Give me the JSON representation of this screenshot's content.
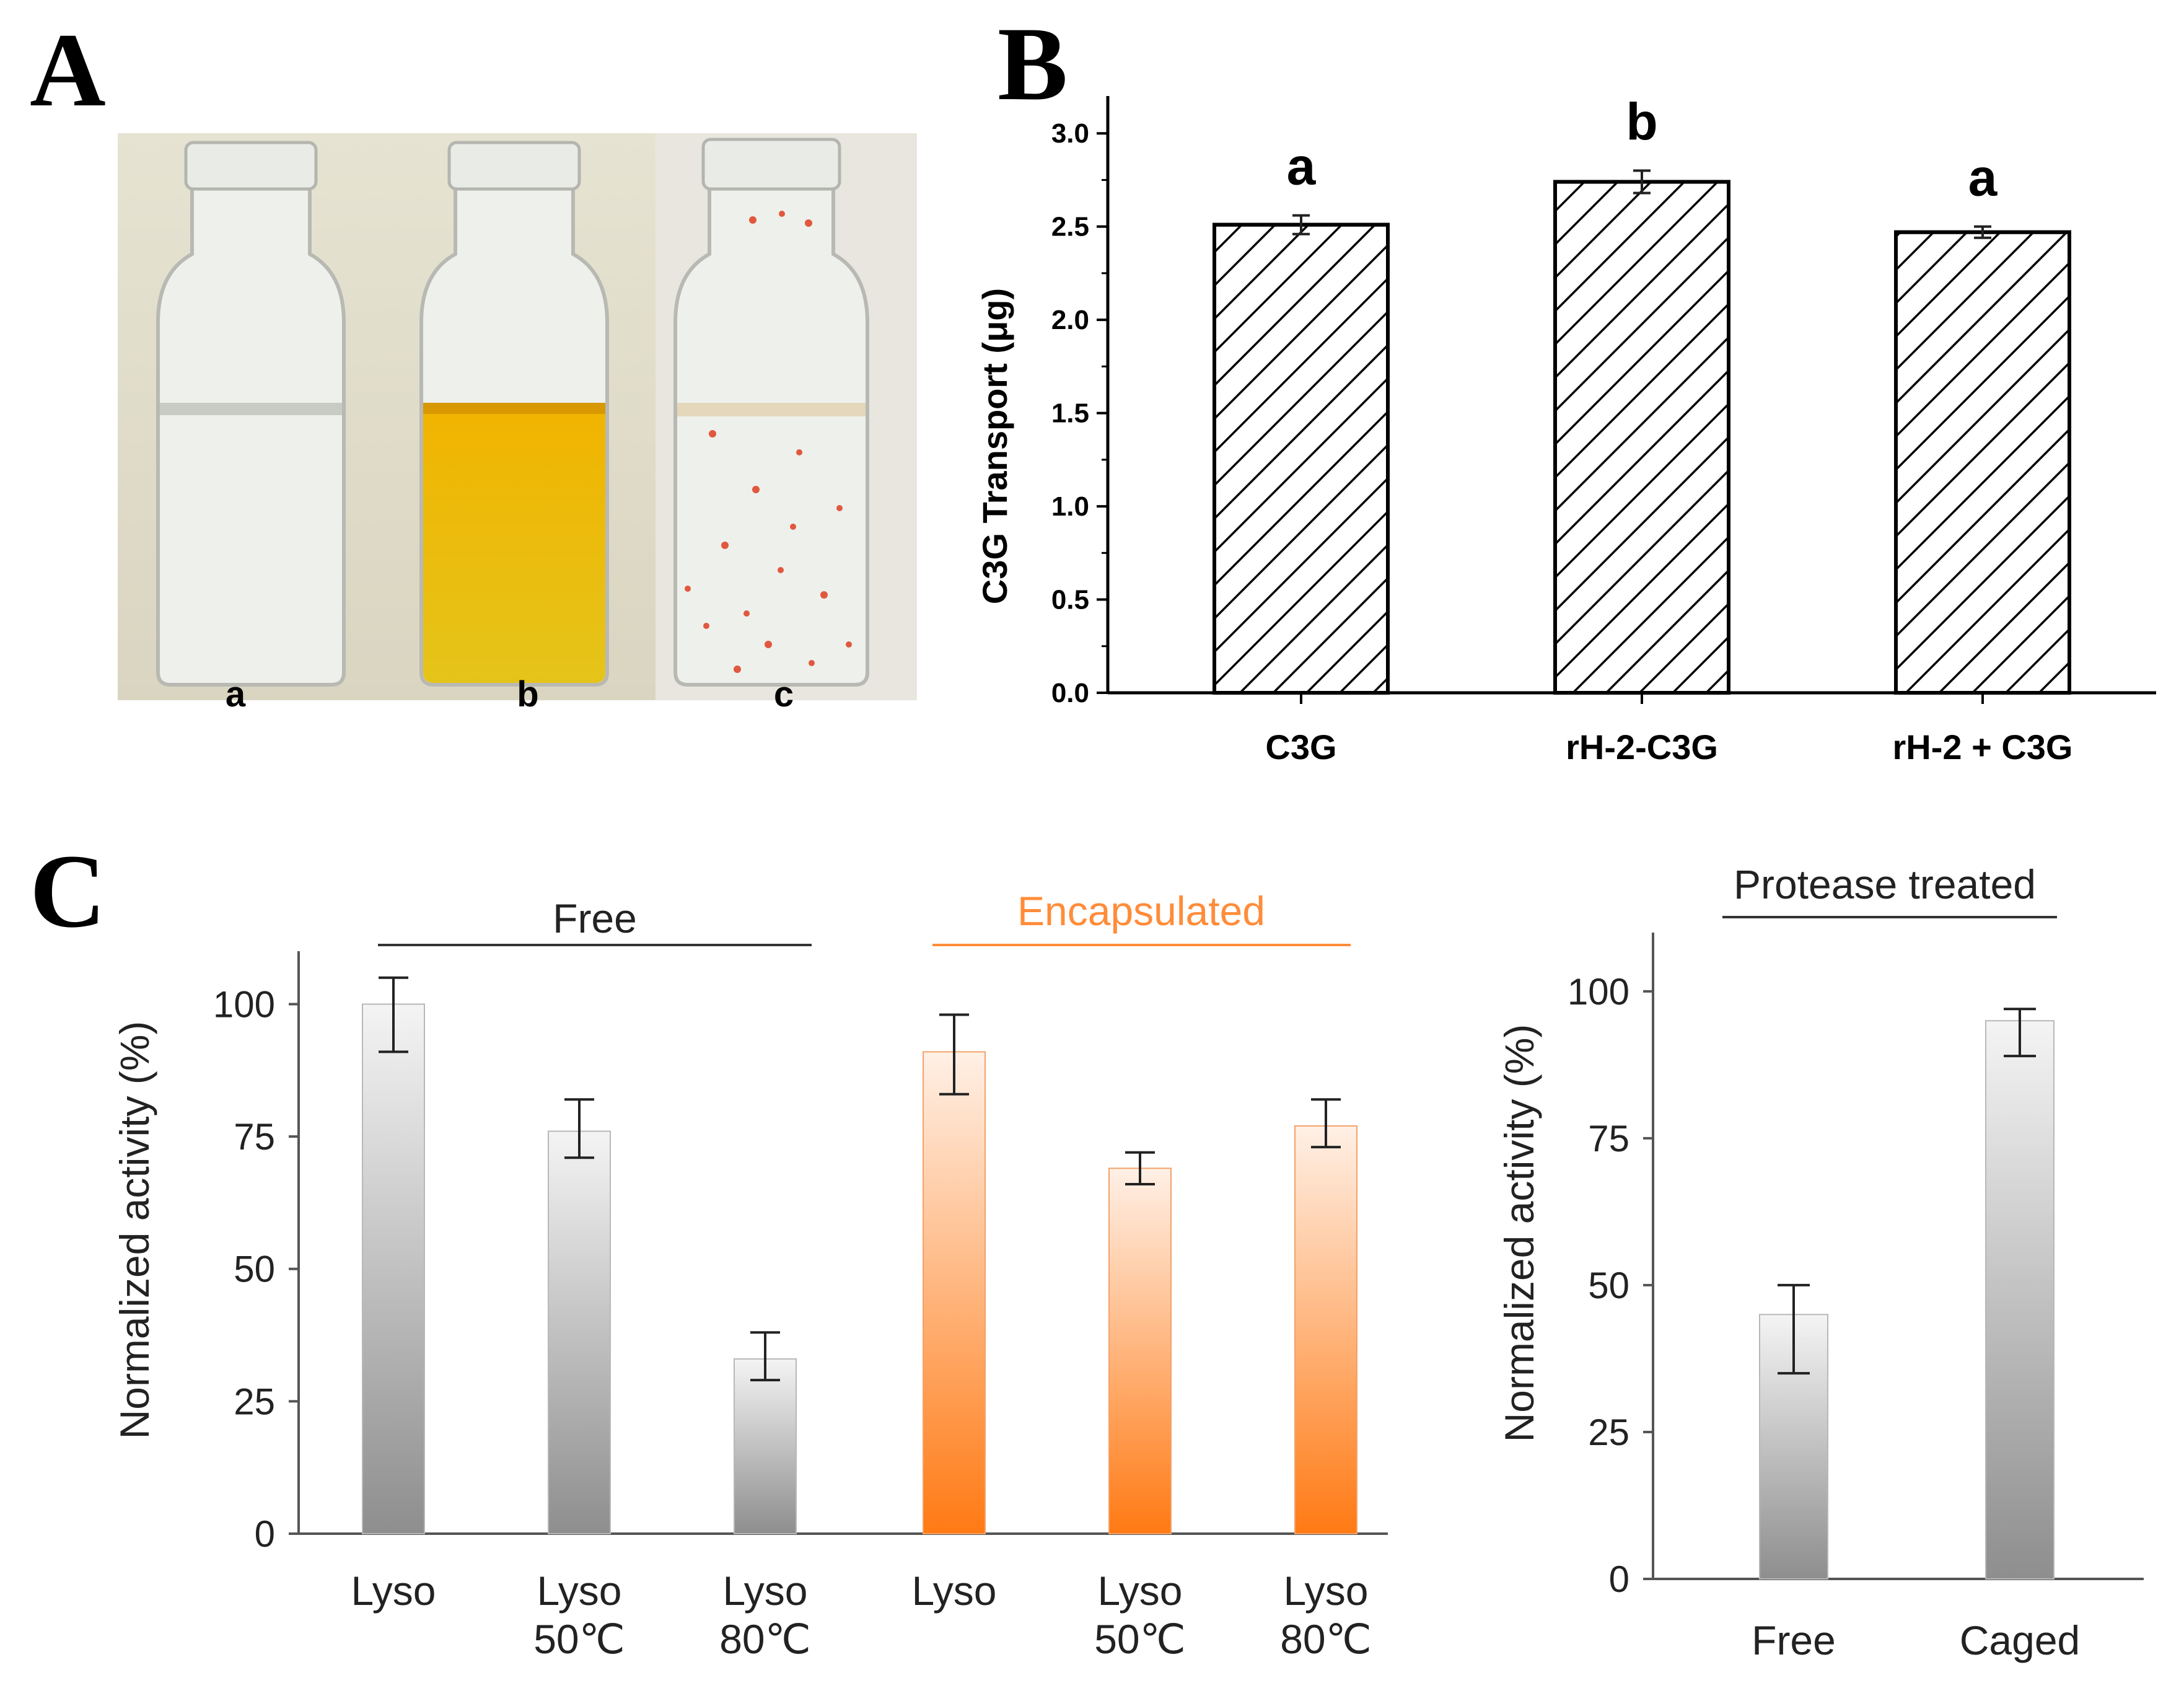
{
  "colors": {
    "encapsulated_label": "#ff8c3a",
    "orange_bar": "#ff7f1e",
    "gray_bar": "#9a9a9a"
  },
  "panel_letters": {
    "a": "A",
    "b": "B",
    "c": "C"
  },
  "photo": {
    "vial_labels": [
      "a",
      "b",
      "c"
    ]
  },
  "chart_data": [
    {
      "id": "B",
      "type": "bar",
      "title": "",
      "xlabel": "",
      "ylabel": "C3G Transport (μg)",
      "ylim": [
        0,
        3.2
      ],
      "yticks": [
        "0.0",
        "0.5",
        "1.0",
        "1.5",
        "2.0",
        "2.5",
        "3.0"
      ],
      "categories": [
        "C3G",
        "rH-2-C3G",
        "rH-2 + C3G"
      ],
      "values": [
        2.51,
        2.74,
        2.47
      ],
      "errors": [
        0.05,
        0.06,
        0.03
      ],
      "significance": [
        "a",
        "b",
        "a"
      ],
      "pattern": "diagonal-hatch"
    },
    {
      "id": "C-left",
      "type": "bar",
      "ylabel": "Normalized activity (%)",
      "ylim": [
        0,
        110
      ],
      "yticks": [
        "0",
        "25",
        "50",
        "75",
        "100"
      ],
      "categories": [
        [
          "Lyso"
        ],
        [
          "Lyso",
          "50℃"
        ],
        [
          "Lyso",
          "80℃"
        ],
        [
          "Lyso"
        ],
        [
          "Lyso",
          "50℃"
        ],
        [
          "Lyso",
          "80℃"
        ]
      ],
      "groups": [
        "Free",
        "Encapsulated"
      ],
      "values": [
        100,
        76,
        33,
        91,
        69,
        77
      ],
      "err_low": [
        9,
        5,
        4,
        8,
        3,
        4
      ],
      "err_high": [
        5,
        6,
        5,
        7,
        3,
        5
      ],
      "colors": [
        "gray",
        "gray",
        "gray",
        "orange",
        "orange",
        "orange"
      ]
    },
    {
      "id": "C-right",
      "type": "bar",
      "title": "Protease treated",
      "ylabel": "Normalized activity  (%)",
      "ylim": [
        0,
        110
      ],
      "yticks": [
        "0",
        "25",
        "50",
        "75",
        "100"
      ],
      "categories": [
        "Free",
        "Caged"
      ],
      "values": [
        45,
        95
      ],
      "err_low": [
        10,
        6
      ],
      "err_high": [
        5,
        2
      ]
    }
  ]
}
